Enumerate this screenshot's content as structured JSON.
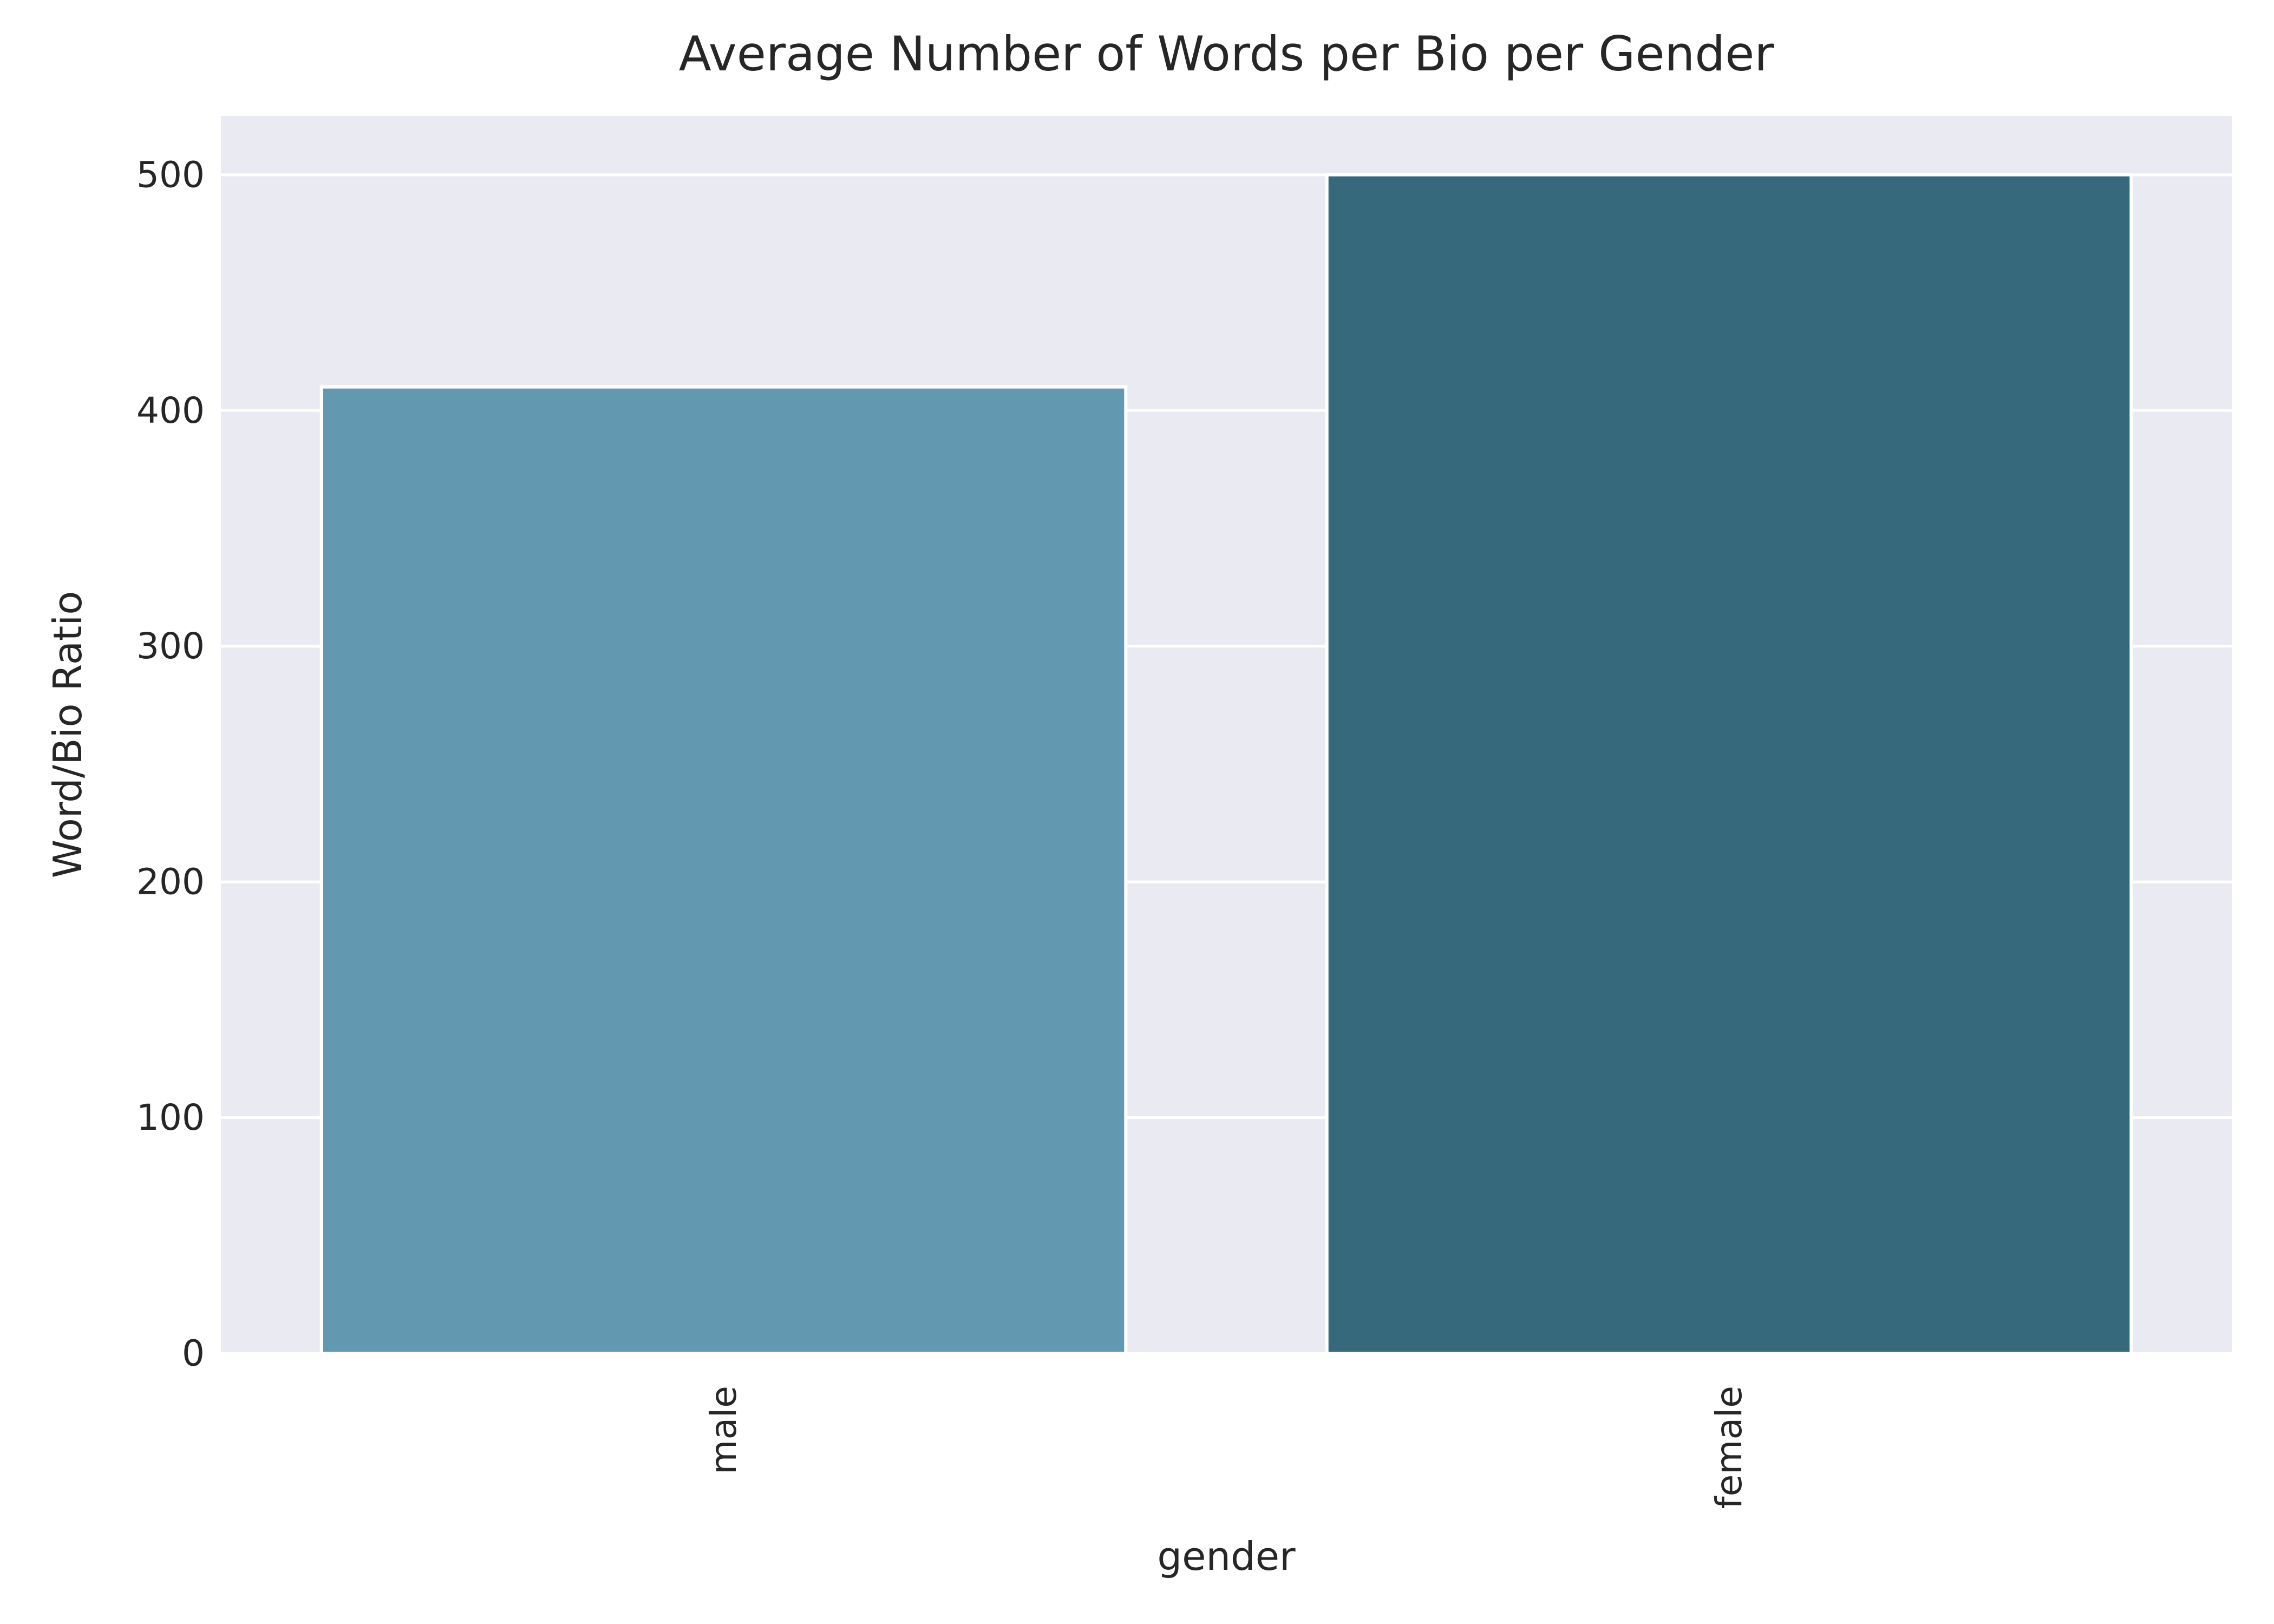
{
  "chart_data": {
    "type": "bar",
    "title": "Average Number of Words per Bio per Gender",
    "xlabel": "gender",
    "ylabel": "Word/Bio Ratio",
    "categories": [
      "male",
      "female"
    ],
    "values": [
      410,
      500
    ],
    "ylim": [
      0,
      525
    ],
    "yticks": [
      0,
      100,
      200,
      300,
      400,
      500
    ],
    "grid": true,
    "x_tick_rotation": "vertical",
    "colors": {
      "bars": [
        "#6399b0",
        "#35697b"
      ],
      "plot_background": "#eaeaf2",
      "gridline": "#ffffff",
      "bar_edge": "#ffffff",
      "text": "#262626"
    }
  }
}
